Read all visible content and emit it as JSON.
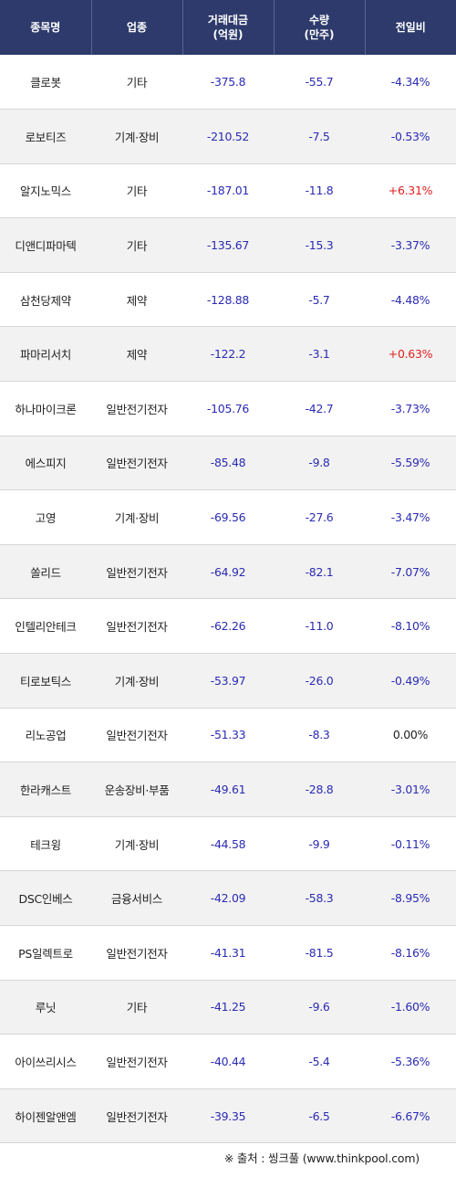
{
  "headers": {
    "name": "종목명",
    "sector": "업종",
    "amount": "거래대금\n(억원)",
    "volume": "수량\n(만주)",
    "change": "전일비"
  },
  "rows": [
    {
      "name": "클로봇",
      "sector": "기타",
      "amount": "-375.8",
      "volume": "-55.7",
      "change": "-4.34%",
      "dir": "neg"
    },
    {
      "name": "로보티즈",
      "sector": "기계·장비",
      "amount": "-210.52",
      "volume": "-7.5",
      "change": "-0.53%",
      "dir": "neg"
    },
    {
      "name": "알지노믹스",
      "sector": "기타",
      "amount": "-187.01",
      "volume": "-11.8",
      "change": "+6.31%",
      "dir": "pos"
    },
    {
      "name": "디앤디파마텍",
      "sector": "기타",
      "amount": "-135.67",
      "volume": "-15.3",
      "change": "-3.37%",
      "dir": "neg"
    },
    {
      "name": "삼천당제약",
      "sector": "제약",
      "amount": "-128.88",
      "volume": "-5.7",
      "change": "-4.48%",
      "dir": "neg"
    },
    {
      "name": "파마리서치",
      "sector": "제약",
      "amount": "-122.2",
      "volume": "-3.1",
      "change": "+0.63%",
      "dir": "pos"
    },
    {
      "name": "하나마이크론",
      "sector": "일반전기전자",
      "amount": "-105.76",
      "volume": "-42.7",
      "change": "-3.73%",
      "dir": "neg"
    },
    {
      "name": "에스피지",
      "sector": "일반전기전자",
      "amount": "-85.48",
      "volume": "-9.8",
      "change": "-5.59%",
      "dir": "neg"
    },
    {
      "name": "고영",
      "sector": "기계·장비",
      "amount": "-69.56",
      "volume": "-27.6",
      "change": "-3.47%",
      "dir": "neg"
    },
    {
      "name": "쏠리드",
      "sector": "일반전기전자",
      "amount": "-64.92",
      "volume": "-82.1",
      "change": "-7.07%",
      "dir": "neg"
    },
    {
      "name": "인텔리안테크",
      "sector": "일반전기전자",
      "amount": "-62.26",
      "volume": "-11.0",
      "change": "-8.10%",
      "dir": "neg"
    },
    {
      "name": "티로보틱스",
      "sector": "기계·장비",
      "amount": "-53.97",
      "volume": "-26.0",
      "change": "-0.49%",
      "dir": "neg"
    },
    {
      "name": "리노공업",
      "sector": "일반전기전자",
      "amount": "-51.33",
      "volume": "-8.3",
      "change": "0.00%",
      "dir": "flat"
    },
    {
      "name": "한라캐스트",
      "sector": "운송장비·부품",
      "amount": "-49.61",
      "volume": "-28.8",
      "change": "-3.01%",
      "dir": "neg"
    },
    {
      "name": "테크윙",
      "sector": "기계·장비",
      "amount": "-44.58",
      "volume": "-9.9",
      "change": "-0.11%",
      "dir": "neg"
    },
    {
      "name": "DSC인베스",
      "sector": "금융서비스",
      "amount": "-42.09",
      "volume": "-58.3",
      "change": "-8.95%",
      "dir": "neg"
    },
    {
      "name": "PS일렉트로",
      "sector": "일반전기전자",
      "amount": "-41.31",
      "volume": "-81.5",
      "change": "-8.16%",
      "dir": "neg"
    },
    {
      "name": "루닛",
      "sector": "기타",
      "amount": "-41.25",
      "volume": "-9.6",
      "change": "-1.60%",
      "dir": "neg"
    },
    {
      "name": "아이쓰리시스",
      "sector": "일반전기전자",
      "amount": "-40.44",
      "volume": "-5.4",
      "change": "-5.36%",
      "dir": "neg"
    },
    {
      "name": "하이젠알앤엠",
      "sector": "일반전기전자",
      "amount": "-39.35",
      "volume": "-6.5",
      "change": "-6.67%",
      "dir": "neg"
    }
  ],
  "source": "※ 출처 : 씽크풀 (www.thinkpool.com)",
  "colors": {
    "header_bg": "#2d3a6b",
    "negative": "#2b2bb4",
    "positive": "#e01e1e",
    "alt_row_bg": "#f2f2f2"
  }
}
